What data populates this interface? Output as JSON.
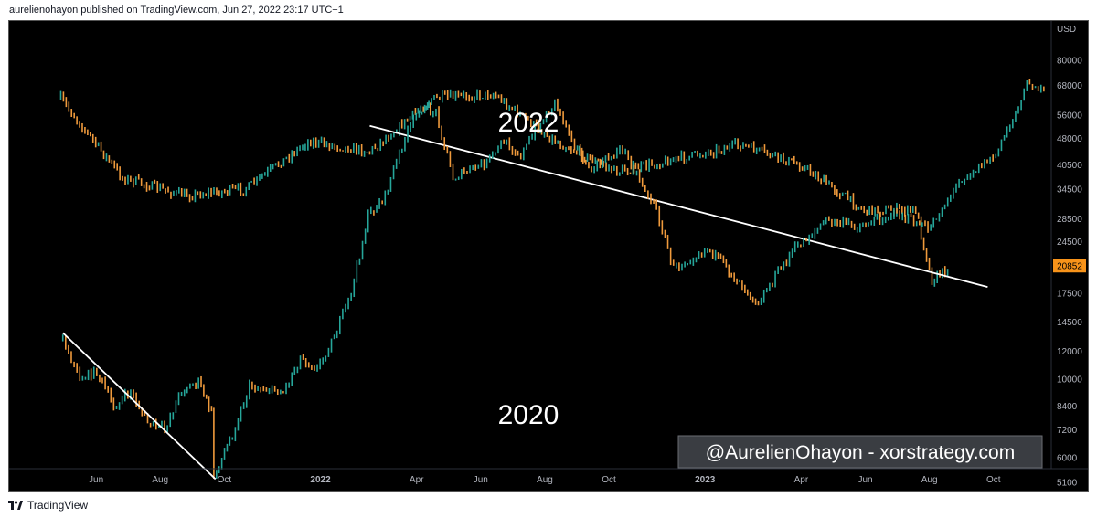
{
  "header": {
    "text": "aurelienohayon published on TradingView.com, Jun 27, 2022 23:17 UTC+1"
  },
  "footer": {
    "brand": "TradingView",
    "icon": "tradingview-logo-icon"
  },
  "watermark": "@AurelienOhayon - xorstrategy.com",
  "colors": {
    "background": "#000000",
    "up": "#26a69a",
    "down": "#ef9a3c",
    "trendline": "#ffffff",
    "price_tag": "#f7931a",
    "axis_text": "#b2b5be"
  },
  "chart_data": {
    "type": "line",
    "title": "",
    "xlabel": "",
    "ylabel": "",
    "y_currency": "USD",
    "y_scale": "log",
    "ylim": [
      5000,
      100000
    ],
    "y_ticks": [
      80000,
      68000,
      56000,
      48000,
      40500,
      34500,
      28500,
      24500,
      17500,
      14500,
      12000,
      10000,
      8400,
      7200,
      6000,
      5100
    ],
    "current_price": 20852,
    "x_ticks": [
      "Jun",
      "Aug",
      "Oct",
      "2022",
      "Apr",
      "Jun",
      "Aug",
      "Oct",
      "2023",
      "Apr",
      "Jun",
      "Aug",
      "Oct"
    ],
    "annotations": [
      "2022",
      "2020"
    ],
    "series": [
      {
        "name": "2022",
        "points": [
          [
            "2021-04",
            62000
          ],
          [
            "2021-05",
            37000
          ],
          [
            "2021-06",
            33000
          ],
          [
            "2021-07",
            34500
          ],
          [
            "2021-08",
            47000
          ],
          [
            "2021-09",
            44000
          ],
          [
            "2021-10",
            62000
          ],
          [
            "2021-11",
            64000
          ],
          [
            "2021-12",
            47000
          ],
          [
            "2022-01",
            38500
          ],
          [
            "2022-02",
            42000
          ],
          [
            "2022-03",
            46000
          ],
          [
            "2022-04",
            40000
          ],
          [
            "2022-05",
            30000
          ],
          [
            "2022-06-10",
            30000
          ],
          [
            "2022-06-18",
            19000
          ],
          [
            "2022-06-27",
            20852
          ]
        ],
        "trendline": [
          [
            "2021-09",
            52000
          ],
          [
            "2022-07",
            18200
          ]
        ]
      },
      {
        "name": "2020",
        "points": [
          [
            "2019-06",
            13000
          ],
          [
            "2019-07",
            10000
          ],
          [
            "2019-08",
            10500
          ],
          [
            "2019-09",
            8300
          ],
          [
            "2019-10",
            9200
          ],
          [
            "2019-11",
            7500
          ],
          [
            "2019-12",
            7200
          ],
          [
            "2020-01",
            9300
          ],
          [
            "2020-02",
            9800
          ],
          [
            "2020-03-08",
            8000
          ],
          [
            "2020-03-12",
            5300
          ],
          [
            "2020-04",
            7000
          ],
          [
            "2020-05",
            9500
          ],
          [
            "2020-07",
            9200
          ],
          [
            "2020-08",
            11500
          ],
          [
            "2020-09",
            10700
          ],
          [
            "2020-10",
            13200
          ],
          [
            "2020-11",
            17500
          ],
          [
            "2020-12",
            28900
          ],
          [
            "2021-01",
            33000
          ],
          [
            "2021-02",
            46000
          ],
          [
            "2021-03",
            58000
          ],
          [
            "2021-04",
            57000
          ],
          [
            "2021-05",
            37000
          ],
          [
            "2021-07",
            41000
          ],
          [
            "2021-08",
            47000
          ],
          [
            "2021-09",
            43000
          ],
          [
            "2021-11",
            61000
          ],
          [
            "2022-01",
            38500
          ],
          [
            "2022-03",
            45000
          ],
          [
            "2022-05",
            30000
          ],
          [
            "2022-06",
            20500
          ],
          [
            "2022-08",
            23500
          ],
          [
            "2022-11",
            16500
          ],
          [
            "2023-01",
            23000
          ],
          [
            "2023-03",
            28000
          ],
          [
            "2023-05",
            27000
          ],
          [
            "2023-07",
            29500
          ],
          [
            "2023-09",
            26500
          ],
          [
            "2023-11",
            37000
          ],
          [
            "2024-01",
            43000
          ],
          [
            "2024-03",
            70000
          ],
          [
            "2024-04",
            63000
          ]
        ],
        "trendline": [
          [
            "2019-06",
            13500
          ],
          [
            "2020-03",
            5200
          ]
        ]
      }
    ]
  }
}
